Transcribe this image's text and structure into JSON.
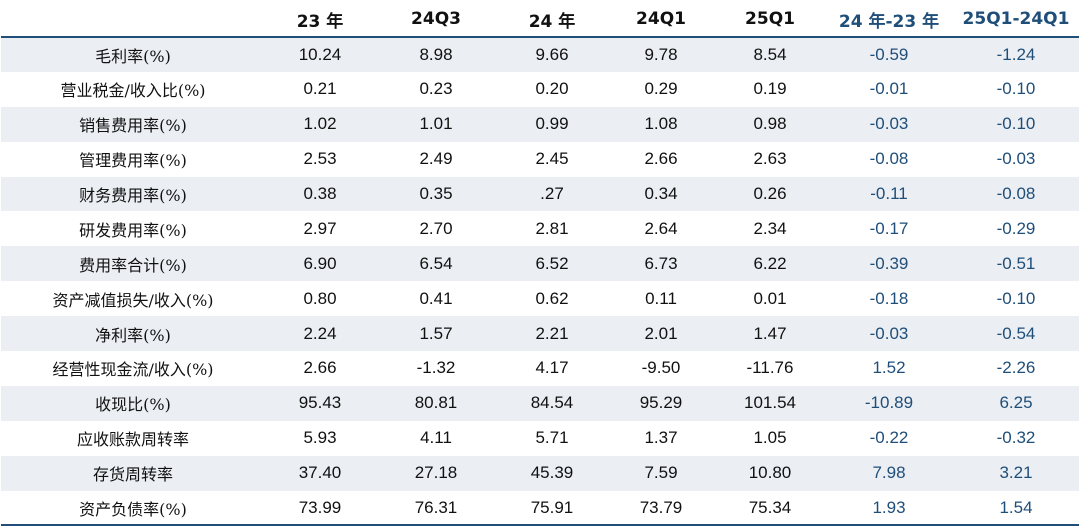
{
  "table": {
    "headers": [
      "",
      "23 年",
      "24Q3",
      "24 年",
      "24Q1",
      "25Q1",
      "24 年-23 年",
      "25Q1-24Q1"
    ],
    "rows": [
      {
        "label": "毛利率(%)",
        "values": [
          "10.24",
          "8.98",
          "9.66",
          "9.78",
          "8.54",
          "-0.59",
          "-1.24"
        ]
      },
      {
        "label": "营业税金/收入比(%)",
        "values": [
          "0.21",
          "0.23",
          "0.20",
          "0.29",
          "0.19",
          "-0.01",
          "-0.10"
        ]
      },
      {
        "label": "销售费用率(%)",
        "values": [
          "1.02",
          "1.01",
          "0.99",
          "1.08",
          "0.98",
          "-0.03",
          "-0.10"
        ]
      },
      {
        "label": "管理费用率(%)",
        "values": [
          "2.53",
          "2.49",
          "2.45",
          "2.66",
          "2.63",
          "-0.08",
          "-0.03"
        ]
      },
      {
        "label": "财务费用率(%)",
        "values": [
          "0.38",
          "0.35",
          ".27",
          "0.34",
          "0.26",
          "-0.11",
          "-0.08"
        ]
      },
      {
        "label": "研发费用率(%)",
        "values": [
          "2.97",
          "2.70",
          "2.81",
          "2.64",
          "2.34",
          "-0.17",
          "-0.29"
        ]
      },
      {
        "label": "费用率合计(%)",
        "values": [
          "6.90",
          "6.54",
          "6.52",
          "6.73",
          "6.22",
          "-0.39",
          "-0.51"
        ]
      },
      {
        "label": "资产减值损失/收入(%)",
        "values": [
          "0.80",
          "0.41",
          "0.62",
          "0.11",
          "0.01",
          "-0.18",
          "-0.10"
        ]
      },
      {
        "label": "净利率(%)",
        "values": [
          "2.24",
          "1.57",
          "2.21",
          "2.01",
          "1.47",
          "-0.03",
          "-0.54"
        ]
      },
      {
        "label": "经营性现金流/收入(%)",
        "values": [
          "2.66",
          "-1.32",
          "4.17",
          "-9.50",
          "-11.76",
          "1.52",
          "-2.26"
        ]
      },
      {
        "label": "收现比(%)",
        "values": [
          "95.43",
          "80.81",
          "84.54",
          "95.29",
          "101.54",
          "-10.89",
          "6.25"
        ]
      },
      {
        "label": "应收账款周转率",
        "values": [
          "5.93",
          "4.11",
          "5.71",
          "1.37",
          "1.05",
          "-0.22",
          "-0.32"
        ]
      },
      {
        "label": "存货周转率",
        "values": [
          "37.40",
          "27.18",
          "45.39",
          "7.59",
          "10.80",
          "7.98",
          "3.21"
        ]
      },
      {
        "label": "资产负债率(%)",
        "values": [
          "73.99",
          "76.31",
          "75.91",
          "73.79",
          "75.34",
          "1.93",
          "1.54"
        ]
      }
    ]
  },
  "colors": {
    "header_rule": "#1f4e79",
    "diff_text": "#1f4e79",
    "stripe": "#ebeef3"
  }
}
